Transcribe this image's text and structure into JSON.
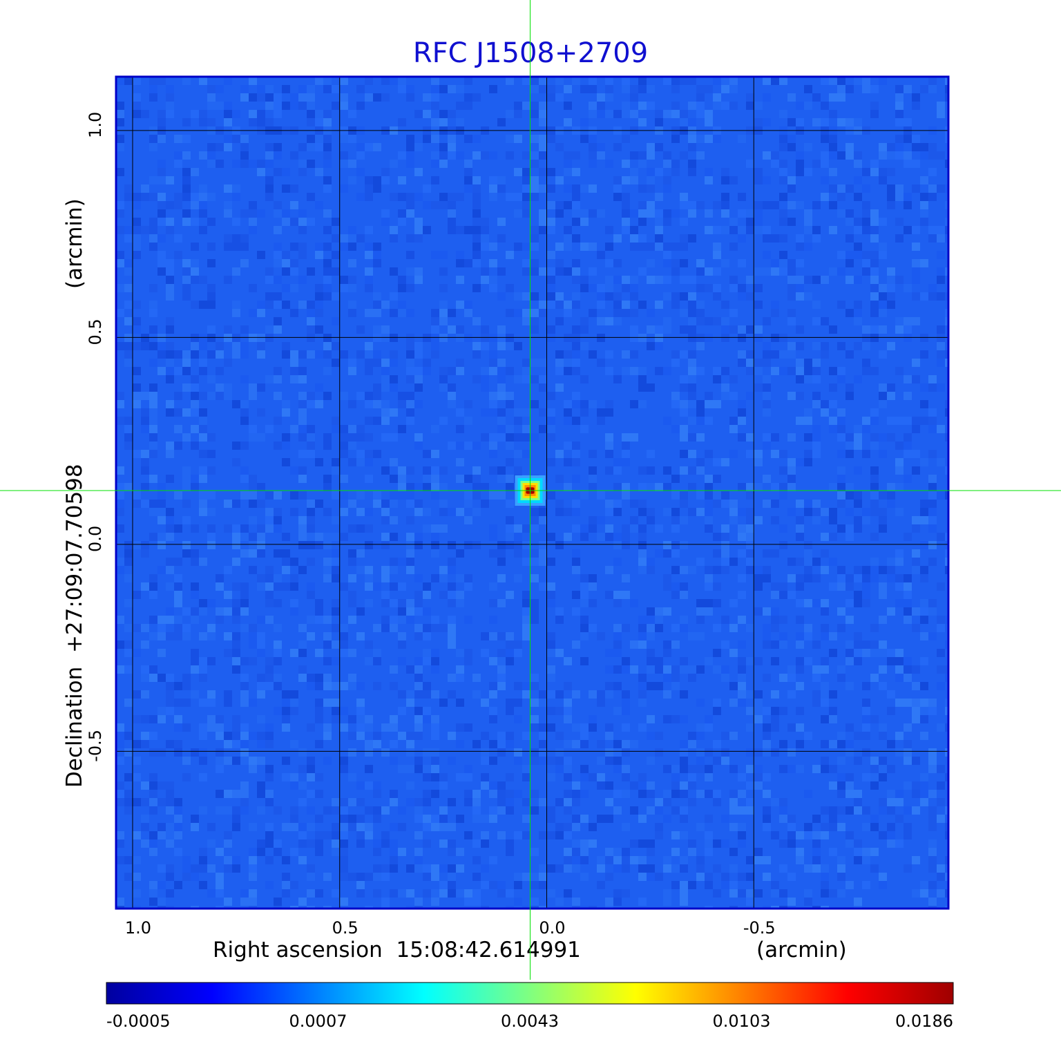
{
  "chart_data": {
    "type": "heatmap",
    "title": "RFC J1508+2709",
    "x_axis": {
      "label": "Right ascension  15:08:42.614991",
      "unit_label": "(arcmin)",
      "range": [
        1.04,
        -0.97
      ],
      "ticks": [
        {
          "value": 1.0,
          "label": "1.0"
        },
        {
          "value": 0.5,
          "label": "0.5"
        },
        {
          "value": 0.0,
          "label": "0.0"
        },
        {
          "value": -0.5,
          "label": "-0.5"
        }
      ]
    },
    "y_axis": {
      "label": "Declination  +27:09:07.70598",
      "unit_label": "(arcmin)",
      "range": [
        -0.88,
        1.13
      ],
      "ticks": [
        {
          "value": 1.0,
          "label": "1.0"
        },
        {
          "value": 0.5,
          "label": "0.5"
        },
        {
          "value": 0.0,
          "label": "0.0"
        },
        {
          "value": -0.5,
          "label": "-0.5"
        }
      ]
    },
    "grid": true,
    "crosshair": {
      "x": 0.04,
      "y": 0.13
    },
    "source": {
      "x": 0.04,
      "y": 0.13,
      "peak": 0.0186
    },
    "background_level": -0.0002,
    "colorbar": {
      "orientation": "horizontal",
      "placement": "bottom",
      "ticks": [
        "-0.0005",
        "0.0007",
        "0.0043",
        "0.0103",
        "0.0186"
      ],
      "colors": [
        "#00009f",
        "#0000ff",
        "#0080ff",
        "#00ffff",
        "#80ff80",
        "#ffff00",
        "#ff8000",
        "#ff0000",
        "#9f0000"
      ]
    },
    "colors": {
      "title": "#1010d0",
      "frame": "#0000c8",
      "grid": "#000000",
      "crosshair": "#00e000"
    }
  }
}
